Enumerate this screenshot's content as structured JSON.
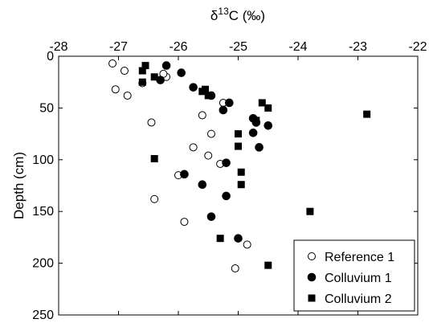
{
  "chart_data": {
    "type": "scatter",
    "xlabel": "δ¹³C (‰)",
    "ylabel": "Depth (cm)",
    "xlim": [
      -28,
      -22
    ],
    "ylim": [
      0,
      250
    ],
    "y_inverted": true,
    "x_axis_position": "top",
    "xticks": [
      -28,
      -27,
      -26,
      -25,
      -24,
      -23,
      -22
    ],
    "yticks": [
      0,
      50,
      100,
      150,
      200,
      250
    ],
    "grid": false,
    "legend_position": "bottom-right",
    "series": [
      {
        "name": "Reference 1",
        "marker": "open-circle",
        "points": [
          [
            -27.1,
            7
          ],
          [
            -26.9,
            14
          ],
          [
            -27.05,
            32
          ],
          [
            -26.85,
            38
          ],
          [
            -26.6,
            26
          ],
          [
            -26.2,
            20
          ],
          [
            -26.25,
            17
          ],
          [
            -25.25,
            45
          ],
          [
            -25.6,
            57
          ],
          [
            -26.45,
            64
          ],
          [
            -25.45,
            75
          ],
          [
            -25.75,
            88
          ],
          [
            -25.5,
            96
          ],
          [
            -25.3,
            104
          ],
          [
            -26.0,
            115
          ],
          [
            -26.4,
            138
          ],
          [
            -25.9,
            160
          ],
          [
            -24.85,
            182
          ],
          [
            -25.05,
            205
          ]
        ]
      },
      {
        "name": "Colluvium 1",
        "marker": "filled-circle",
        "points": [
          [
            -26.2,
            9
          ],
          [
            -25.95,
            16
          ],
          [
            -26.3,
            23
          ],
          [
            -25.75,
            30
          ],
          [
            -25.45,
            38
          ],
          [
            -25.15,
            45
          ],
          [
            -25.25,
            52
          ],
          [
            -24.75,
            60
          ],
          [
            -24.7,
            64
          ],
          [
            -24.5,
            67
          ],
          [
            -24.75,
            74
          ],
          [
            -24.65,
            88
          ],
          [
            -25.2,
            103
          ],
          [
            -25.9,
            114
          ],
          [
            -25.6,
            124
          ],
          [
            -25.2,
            135
          ],
          [
            -25.45,
            155
          ],
          [
            -25.0,
            176
          ]
        ]
      },
      {
        "name": "Colluvium 2",
        "marker": "filled-square",
        "points": [
          [
            -26.55,
            9
          ],
          [
            -26.6,
            14
          ],
          [
            -26.4,
            20
          ],
          [
            -26.6,
            25
          ],
          [
            -25.6,
            34
          ],
          [
            -25.55,
            32
          ],
          [
            -25.5,
            38
          ],
          [
            -24.6,
            45
          ],
          [
            -24.5,
            50
          ],
          [
            -22.85,
            56
          ],
          [
            -24.7,
            62
          ],
          [
            -25.0,
            75
          ],
          [
            -25.0,
            87
          ],
          [
            -26.4,
            99
          ],
          [
            -24.95,
            112
          ],
          [
            -24.95,
            124
          ],
          [
            -23.8,
            150
          ],
          [
            -25.3,
            176
          ],
          [
            -24.5,
            202
          ]
        ]
      }
    ]
  }
}
